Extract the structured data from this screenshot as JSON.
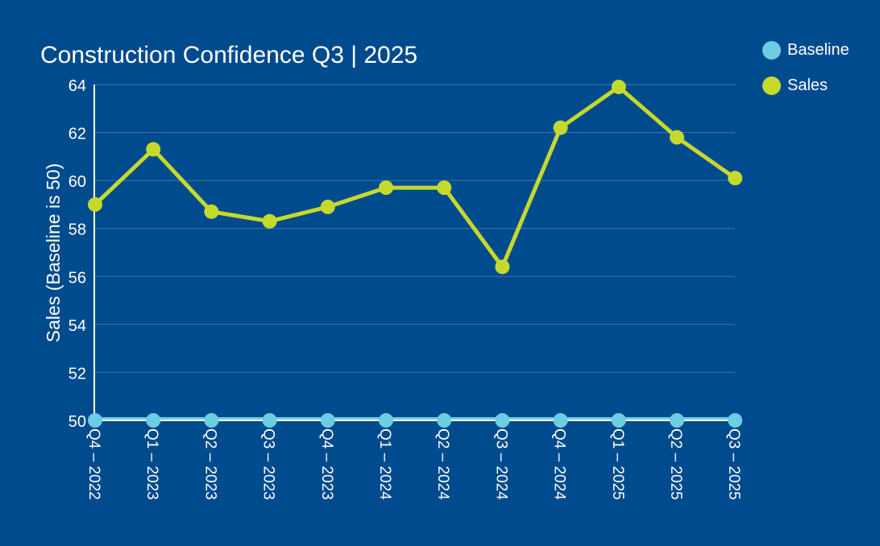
{
  "chart_data": {
    "type": "line",
    "title": "Construction Confidence Q3 | 2025",
    "xlabel": "",
    "ylabel": "Sales (Baseline is 50)",
    "ylim": [
      50,
      64
    ],
    "yticks": [
      "50",
      "52",
      "54",
      "56",
      "58",
      "60",
      "62",
      "64"
    ],
    "grid": true,
    "legend_position": "top-right",
    "categories": [
      "Q4 – 2022",
      "Q1 – 2023",
      "Q2 – 2023",
      "Q3 – 2023",
      "Q4 – 2023",
      "Q1 – 2024",
      "Q2 – 2024",
      "Q3 – 2024",
      "Q4 – 2024",
      "Q1 – 2025",
      "Q2 – 2025",
      "Q3 – 2025"
    ],
    "series": [
      {
        "name": "Baseline",
        "color": "#6dcde3",
        "values": [
          50,
          50,
          50,
          50,
          50,
          50,
          50,
          50,
          50,
          50,
          50,
          50
        ]
      },
      {
        "name": "Sales",
        "color": "#c5d92d",
        "values": [
          59.0,
          61.3,
          58.7,
          58.3,
          58.9,
          59.7,
          59.7,
          56.4,
          62.2,
          63.9,
          61.8,
          60.1
        ]
      }
    ]
  }
}
